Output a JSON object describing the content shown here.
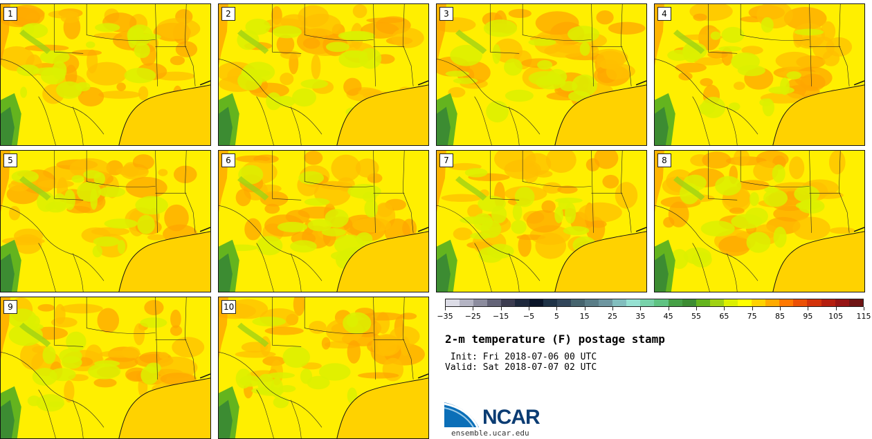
{
  "members": [
    {
      "label": "1"
    },
    {
      "label": "2"
    },
    {
      "label": "3"
    },
    {
      "label": "4"
    },
    {
      "label": "5"
    },
    {
      "label": "6"
    },
    {
      "label": "7"
    },
    {
      "label": "8"
    },
    {
      "label": "9"
    },
    {
      "label": "10"
    }
  ],
  "colorbar": {
    "colors": [
      "#dcdce6",
      "#b4b4c3",
      "#8c8c9e",
      "#646478",
      "#3c3c50",
      "#1e283c",
      "#0a1428",
      "#1e3246",
      "#32465a",
      "#46646e",
      "#5a7d87",
      "#6e96a0",
      "#82bebe",
      "#96e1d2",
      "#78d2aa",
      "#5fc382",
      "#46a046",
      "#3c8c32",
      "#64b41e",
      "#a0d214",
      "#dcf000",
      "#ffff00",
      "#ffd200",
      "#ffaa00",
      "#ff7800",
      "#eb5005",
      "#d2320a",
      "#b41e0f",
      "#961414",
      "#6e1414"
    ],
    "tick_labels": [
      "−35",
      "−25",
      "−15",
      "−5",
      "5",
      "15",
      "25",
      "35",
      "45",
      "55",
      "65",
      "75",
      "85",
      "95",
      "105",
      "115"
    ]
  },
  "title": "2-m temperature (F) postage stamp",
  "init_text": " Init: Fri 2018-07-06 00 UTC",
  "valid_text": "Valid: Sat 2018-07-07 02 UTC",
  "logo": {
    "text": "NCAR"
  },
  "url": "ensemble.ucar.edu"
}
